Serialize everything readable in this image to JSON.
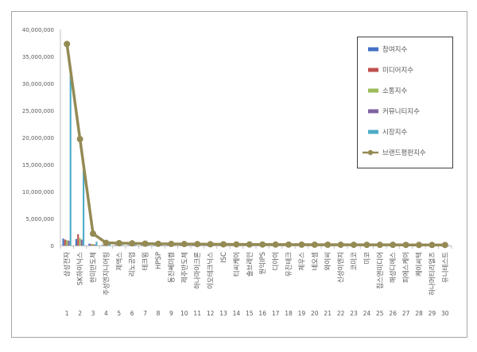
{
  "chart_data": {
    "type": "bar",
    "title": "",
    "xlabel": "",
    "ylabel": "",
    "ylim": [
      0,
      40000000
    ],
    "yticks": [
      "0",
      "5,000,000",
      "10,000,000",
      "15,000,000",
      "20,000,000",
      "25,000,000",
      "30,000,000",
      "35,000,000",
      "40,000,000"
    ],
    "grid": false,
    "legend_position": "right",
    "ranks": [
      "1",
      "2",
      "3",
      "4",
      "5",
      "6",
      "7",
      "8",
      "9",
      "10",
      "11",
      "12",
      "13",
      "14",
      "15",
      "16",
      "17",
      "18",
      "19",
      "20",
      "21",
      "22",
      "23",
      "24",
      "25",
      "26",
      "27",
      "28",
      "29",
      "30"
    ],
    "categories": [
      "삼성전자",
      "SK하이닉스",
      "한미반도체",
      "주성엔지니어링",
      "제엑스",
      "리노공업",
      "테크윙",
      "HPSP",
      "동진쎄미켐",
      "제주반도체",
      "하나마이크론",
      "이오테크닉스",
      "ISC",
      "티씨케이",
      "솔브레인",
      "원익IPS",
      "디아이",
      "유진테크",
      "제우스",
      "네오셈",
      "와이씨",
      "신성이엔지",
      "코미코",
      "미코",
      "칩스앤미디어",
      "해성디에스",
      "피에스케이",
      "케이씨텍",
      "하나머티리얼즈",
      "유니테스트"
    ],
    "series": [
      {
        "name": "참여지수",
        "color": "#4472c4",
        "values": [
          1300000,
          1200000,
          350000,
          120000,
          90000,
          80000,
          70000,
          60000,
          50000,
          50000,
          40000,
          40000,
          30000,
          30000,
          30000,
          20000,
          20000,
          20000,
          20000,
          20000,
          15000,
          15000,
          15000,
          10000,
          10000,
          10000,
          10000,
          10000,
          10000,
          10000
        ]
      },
      {
        "name": "미디어지수",
        "color": "#c0504d",
        "values": [
          1100000,
          2100000,
          250000,
          100000,
          80000,
          70000,
          60000,
          50000,
          50000,
          40000,
          40000,
          30000,
          30000,
          30000,
          20000,
          20000,
          20000,
          20000,
          20000,
          15000,
          15000,
          15000,
          10000,
          10000,
          10000,
          10000,
          10000,
          10000,
          10000,
          10000
        ]
      },
      {
        "name": "소통지수",
        "color": "#9bbb59",
        "values": [
          1000000,
          1400000,
          300000,
          100000,
          80000,
          70000,
          60000,
          50000,
          50000,
          40000,
          40000,
          30000,
          30000,
          30000,
          20000,
          20000,
          20000,
          20000,
          20000,
          15000,
          15000,
          15000,
          10000,
          10000,
          10000,
          10000,
          10000,
          10000,
          10000,
          10000
        ]
      },
      {
        "name": "커뮤니티지수",
        "color": "#8064a2",
        "values": [
          900000,
          1100000,
          200000,
          80000,
          60000,
          50000,
          40000,
          40000,
          30000,
          30000,
          30000,
          20000,
          20000,
          20000,
          20000,
          15000,
          15000,
          15000,
          10000,
          10000,
          10000,
          10000,
          10000,
          10000,
          10000,
          10000,
          10000,
          10000,
          10000,
          10000
        ]
      },
      {
        "name": "시장지수",
        "color": "#4bacc6",
        "values": [
          31500000,
          14000000,
          700000,
          250000,
          120000,
          110000,
          100000,
          90000,
          80000,
          70000,
          60000,
          60000,
          50000,
          50000,
          40000,
          40000,
          40000,
          30000,
          30000,
          30000,
          30000,
          20000,
          20000,
          20000,
          20000,
          20000,
          20000,
          20000,
          20000,
          20000
        ]
      },
      {
        "name": "브랜드평판지수",
        "color": "#948a54",
        "type": "line",
        "values": [
          37300000,
          19700000,
          2200000,
          500000,
          450000,
          400000,
          350000,
          320000,
          300000,
          280000,
          260000,
          240000,
          220000,
          210000,
          200000,
          190000,
          180000,
          170000,
          160000,
          150000,
          145000,
          140000,
          135000,
          130000,
          125000,
          120000,
          115000,
          110000,
          105000,
          100000
        ]
      }
    ]
  }
}
